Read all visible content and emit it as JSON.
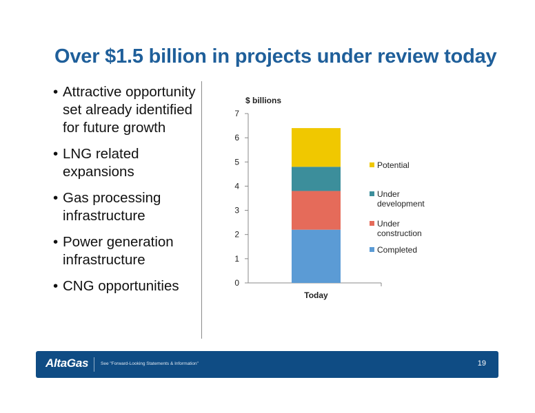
{
  "slide": {
    "title": "Over $1.5 billion in projects under review today",
    "bullets": [
      {
        "text": "Attractive opportunity set already identified for future growth"
      },
      {
        "text": "LNG related expansions"
      },
      {
        "text": "Gas processing infrastructure"
      },
      {
        "text": "Power generation infrastructure"
      },
      {
        "text": "CNG opportunities"
      }
    ]
  },
  "chart_data": {
    "type": "bar",
    "stacked": true,
    "ylabel": "$ billions",
    "categories": [
      "Today"
    ],
    "ylim": [
      0,
      7
    ],
    "yticks": [
      0,
      1,
      2,
      3,
      4,
      5,
      6,
      7
    ],
    "grid": false,
    "legend_position": "right",
    "series": [
      {
        "name": "Completed",
        "values": [
          2.2
        ],
        "color": "#5b9bd5"
      },
      {
        "name": "Under construction",
        "values": [
          1.6
        ],
        "color": "#e56b5a"
      },
      {
        "name": "Under development",
        "values": [
          1.0
        ],
        "color": "#3c8e9b"
      },
      {
        "name": "Potential",
        "values": [
          1.6
        ],
        "color": "#f0c800"
      }
    ],
    "legend_order": [
      "Potential",
      "Under development",
      "Under construction",
      "Completed"
    ]
  },
  "footer": {
    "logo": "AltaGas",
    "disclaimer": "See \"Forward-Looking Statements & Information\"",
    "page_number": "19"
  }
}
